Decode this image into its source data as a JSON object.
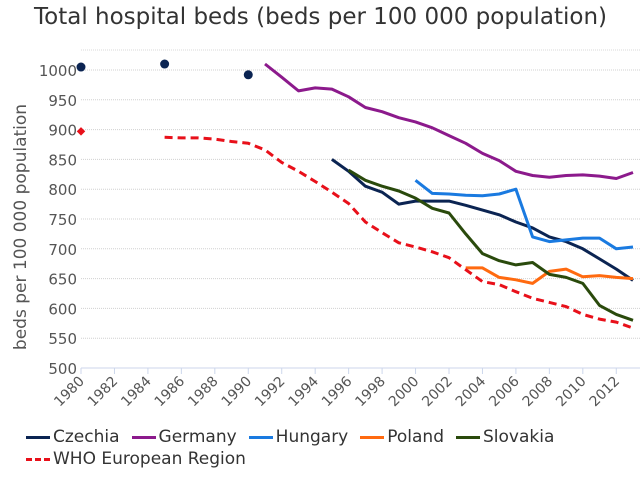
{
  "chart_data": {
    "type": "line",
    "title": "Total hospital beds (beds per 100 000 population)",
    "xlabel": "",
    "ylabel": "beds per 100 000 population",
    "xlim": [
      1980,
      2013
    ],
    "ylim": [
      500,
      1000
    ],
    "yticks": [
      500,
      550,
      600,
      650,
      700,
      750,
      800,
      850,
      900,
      950,
      1000
    ],
    "xticks": [
      1980,
      1982,
      1984,
      1986,
      1988,
      1990,
      1992,
      1994,
      1996,
      1998,
      2000,
      2002,
      2004,
      2006,
      2008,
      2010,
      2012
    ],
    "grid": true,
    "legend_position": "bottom",
    "series": [
      {
        "name": "Czechia",
        "color": "#0b2452",
        "style": "solid",
        "points": [
          [
            1980,
            1005
          ],
          [
            1985,
            1010
          ],
          [
            1990,
            992
          ]
        ],
        "line": [
          [
            1995,
            850
          ],
          [
            1996,
            830
          ],
          [
            1997,
            805
          ],
          [
            1998,
            795
          ],
          [
            1999,
            775
          ],
          [
            2000,
            780
          ],
          [
            2001,
            780
          ],
          [
            2002,
            780
          ],
          [
            2003,
            773
          ],
          [
            2004,
            765
          ],
          [
            2005,
            757
          ],
          [
            2006,
            745
          ],
          [
            2007,
            735
          ],
          [
            2008,
            720
          ],
          [
            2009,
            712
          ],
          [
            2010,
            700
          ],
          [
            2011,
            683
          ],
          [
            2012,
            666
          ],
          [
            2013,
            647
          ]
        ]
      },
      {
        "name": "Germany",
        "color": "#8c1a8c",
        "style": "solid",
        "points": [],
        "line": [
          [
            1991,
            1010
          ],
          [
            1992,
            988
          ],
          [
            1993,
            965
          ],
          [
            1994,
            970
          ],
          [
            1995,
            968
          ],
          [
            1996,
            955
          ],
          [
            1997,
            937
          ],
          [
            1998,
            930
          ],
          [
            1999,
            920
          ],
          [
            2000,
            913
          ],
          [
            2001,
            903
          ],
          [
            2002,
            890
          ],
          [
            2003,
            877
          ],
          [
            2004,
            860
          ],
          [
            2005,
            848
          ],
          [
            2006,
            830
          ],
          [
            2007,
            823
          ],
          [
            2008,
            820
          ],
          [
            2009,
            823
          ],
          [
            2010,
            824
          ],
          [
            2011,
            822
          ],
          [
            2012,
            818
          ],
          [
            2013,
            828
          ]
        ]
      },
      {
        "name": "Hungary",
        "color": "#1a7ae0",
        "style": "solid",
        "points": [],
        "line": [
          [
            2000,
            815
          ],
          [
            2001,
            793
          ],
          [
            2002,
            792
          ],
          [
            2003,
            790
          ],
          [
            2004,
            789
          ],
          [
            2005,
            792
          ],
          [
            2006,
            800
          ],
          [
            2007,
            720
          ],
          [
            2008,
            712
          ],
          [
            2009,
            715
          ],
          [
            2010,
            718
          ],
          [
            2011,
            718
          ],
          [
            2012,
            700
          ],
          [
            2013,
            703
          ]
        ]
      },
      {
        "name": "Poland",
        "color": "#ff6a10",
        "style": "solid",
        "points": [],
        "line": [
          [
            2003,
            668
          ],
          [
            2004,
            668
          ],
          [
            2005,
            652
          ],
          [
            2006,
            648
          ],
          [
            2007,
            642
          ],
          [
            2008,
            662
          ],
          [
            2009,
            666
          ],
          [
            2010,
            653
          ],
          [
            2011,
            655
          ],
          [
            2012,
            652
          ],
          [
            2013,
            650
          ]
        ]
      },
      {
        "name": "Slovakia",
        "color": "#2a4a0c",
        "style": "solid",
        "points": [],
        "line": [
          [
            1996,
            832
          ],
          [
            1997,
            815
          ],
          [
            1998,
            805
          ],
          [
            1999,
            797
          ],
          [
            2000,
            785
          ],
          [
            2001,
            768
          ],
          [
            2002,
            760
          ],
          [
            2003,
            725
          ],
          [
            2004,
            692
          ],
          [
            2005,
            680
          ],
          [
            2006,
            673
          ],
          [
            2007,
            677
          ],
          [
            2008,
            657
          ],
          [
            2009,
            652
          ],
          [
            2010,
            642
          ],
          [
            2011,
            605
          ],
          [
            2012,
            590
          ],
          [
            2013,
            580
          ]
        ]
      },
      {
        "name": "WHO European Region",
        "color": "#e8101a",
        "style": "dashed",
        "points": [
          [
            1980,
            897
          ]
        ],
        "line": [
          [
            1985,
            887
          ],
          [
            1986,
            886
          ],
          [
            1987,
            886
          ],
          [
            1988,
            884
          ],
          [
            1989,
            880
          ],
          [
            1990,
            877
          ],
          [
            1991,
            866
          ],
          [
            1992,
            845
          ],
          [
            1993,
            830
          ],
          [
            1994,
            813
          ],
          [
            1995,
            795
          ],
          [
            1996,
            776
          ],
          [
            1997,
            745
          ],
          [
            1998,
            727
          ],
          [
            1999,
            710
          ],
          [
            2000,
            703
          ],
          [
            2001,
            695
          ],
          [
            2002,
            685
          ],
          [
            2003,
            665
          ],
          [
            2004,
            645
          ],
          [
            2005,
            640
          ],
          [
            2006,
            628
          ],
          [
            2007,
            617
          ],
          [
            2008,
            610
          ],
          [
            2009,
            603
          ],
          [
            2010,
            590
          ],
          [
            2011,
            582
          ],
          [
            2012,
            577
          ],
          [
            2013,
            567
          ]
        ]
      }
    ]
  }
}
